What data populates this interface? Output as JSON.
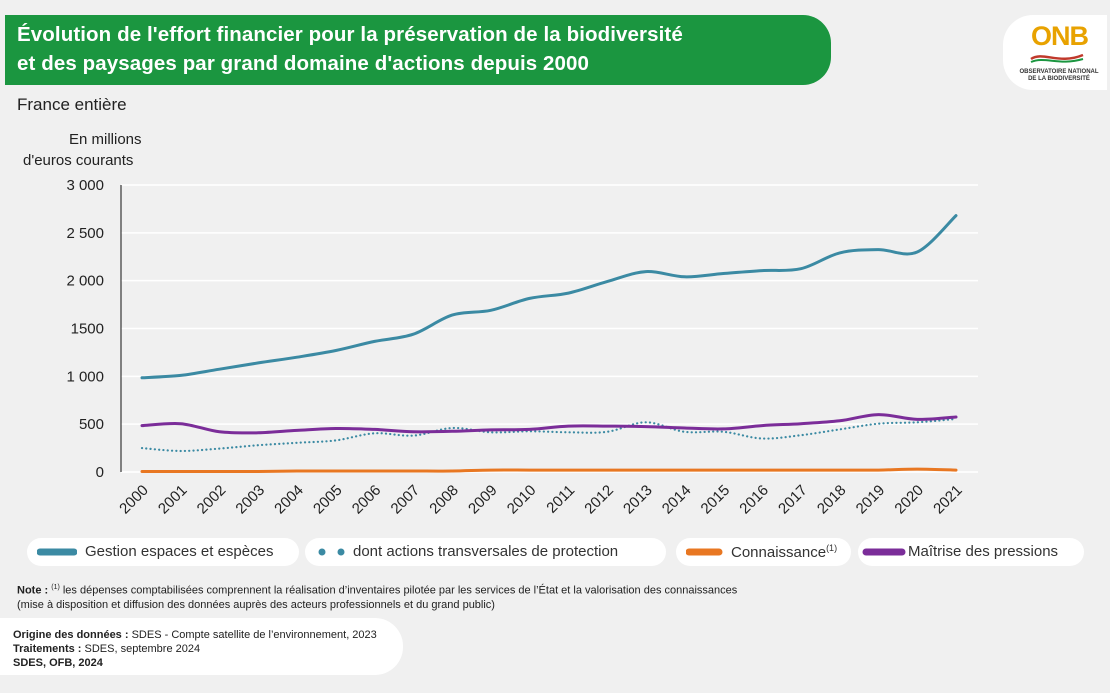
{
  "header": {
    "title_line1": "Évolution de l'effort financier pour la préservation de la biodiversité",
    "title_line2": "et des paysages par grand domaine d'actions depuis 2000",
    "subtitle": "France entière"
  },
  "logo": {
    "text": "ONB",
    "sub1": "OBSERVATOIRE NATIONAL",
    "sub2": "DE LA BIODIVERSITÉ"
  },
  "chart_data": {
    "type": "line",
    "ylabel_line1": "En millions",
    "ylabel_line2": "d'euros courants",
    "ylim": [
      0,
      3000
    ],
    "yticks": [
      0,
      500,
      1000,
      1500,
      2000,
      2500,
      3000
    ],
    "ytick_labels": [
      "0",
      "500",
      "1 000",
      "1500",
      "2 000",
      "2 500",
      "3 000"
    ],
    "grid": "horizontal",
    "legend_position": "bottom",
    "categories": [
      "2000",
      "2001",
      "2002",
      "2003",
      "2004",
      "2005",
      "2006",
      "2007",
      "2008",
      "2009",
      "2010",
      "2011",
      "2012",
      "2013",
      "2014",
      "2015",
      "2016",
      "2017",
      "2018",
      "2019",
      "2020",
      "2021"
    ],
    "series": [
      {
        "name": "Gestion espaces et espèces",
        "color": "#3b8aa3",
        "style": "solid",
        "values": [
          985,
          1010,
          1075,
          1140,
          1200,
          1270,
          1365,
          1440,
          1640,
          1690,
          1815,
          1870,
          1990,
          2095,
          2040,
          2075,
          2105,
          2125,
          2290,
          2325,
          2300,
          2680
        ]
      },
      {
        "name": "dont actions transversales de protection",
        "color": "#3b8aa3",
        "style": "dotted",
        "values": [
          250,
          220,
          245,
          280,
          305,
          330,
          405,
          380,
          460,
          415,
          425,
          415,
          420,
          520,
          420,
          420,
          350,
          385,
          445,
          505,
          520,
          555
        ]
      },
      {
        "name": "Connaissance",
        "name_superscript": "(1)",
        "color": "#e87722",
        "style": "solid",
        "values": [
          5,
          5,
          5,
          5,
          10,
          10,
          10,
          10,
          10,
          20,
          20,
          20,
          20,
          20,
          20,
          20,
          20,
          20,
          20,
          20,
          30,
          20
        ]
      },
      {
        "name": "Maîtrise des pressions",
        "color": "#7b2d99",
        "style": "solid",
        "values": [
          485,
          505,
          420,
          410,
          435,
          455,
          445,
          420,
          425,
          440,
          445,
          480,
          480,
          475,
          460,
          450,
          485,
          505,
          535,
          600,
          550,
          575
        ]
      }
    ]
  },
  "note": {
    "label": "Note :",
    "superscript": "(1)",
    "line1": "les dépenses comptabilisées comprennent la réalisation d’inventaires pilotée par les services de l’État et la valorisation des connaissances",
    "line2": "(mise à disposition et diffusion des données auprès des acteurs professionnels et du grand public)"
  },
  "source": {
    "origin_label": "Origine des données :",
    "origin_value": "SDES - Compte satellite de l’environnement, 2023",
    "processing_label": "Traitements :",
    "processing_value": "SDES, septembre 2024",
    "credit": "SDES, OFB, 2024"
  }
}
